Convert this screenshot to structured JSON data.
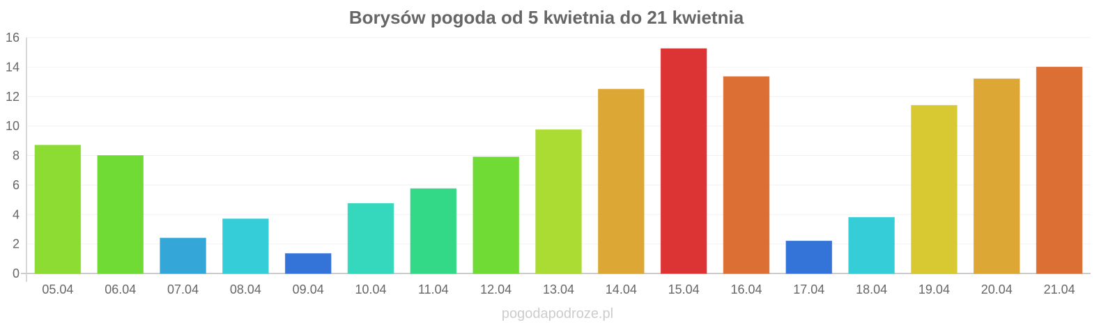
{
  "chart_data": {
    "type": "bar",
    "title": "Borysów pogoda od 5 kwietnia do 21 kwietnia",
    "xlabel": "",
    "ylabel": "",
    "ylim": [
      0,
      16
    ],
    "yticks": [
      0,
      2,
      4,
      6,
      8,
      10,
      12,
      14,
      16
    ],
    "grid": true,
    "categories": [
      "05.04",
      "06.04",
      "07.04",
      "08.04",
      "09.04",
      "10.04",
      "11.04",
      "12.04",
      "13.04",
      "14.04",
      "15.04",
      "16.04",
      "17.04",
      "18.04",
      "19.04",
      "20.04",
      "21.04"
    ],
    "values": [
      8.7,
      8.0,
      2.4,
      3.7,
      1.35,
      4.75,
      5.75,
      7.9,
      9.75,
      12.5,
      15.25,
      13.35,
      2.2,
      3.8,
      11.4,
      13.2,
      14.0
    ],
    "colors": [
      "#8cdc34",
      "#6fdb34",
      "#35a6d8",
      "#35cdd8",
      "#3474d8",
      "#35d8bc",
      "#33d987",
      "#6fdb34",
      "#aadc34",
      "#dca734",
      "#dc3434",
      "#dc6f34",
      "#3474d8",
      "#35cdd8",
      "#d8c832",
      "#dca734",
      "#dc6f34"
    ]
  },
  "footer": "pogodapodroze.pl"
}
